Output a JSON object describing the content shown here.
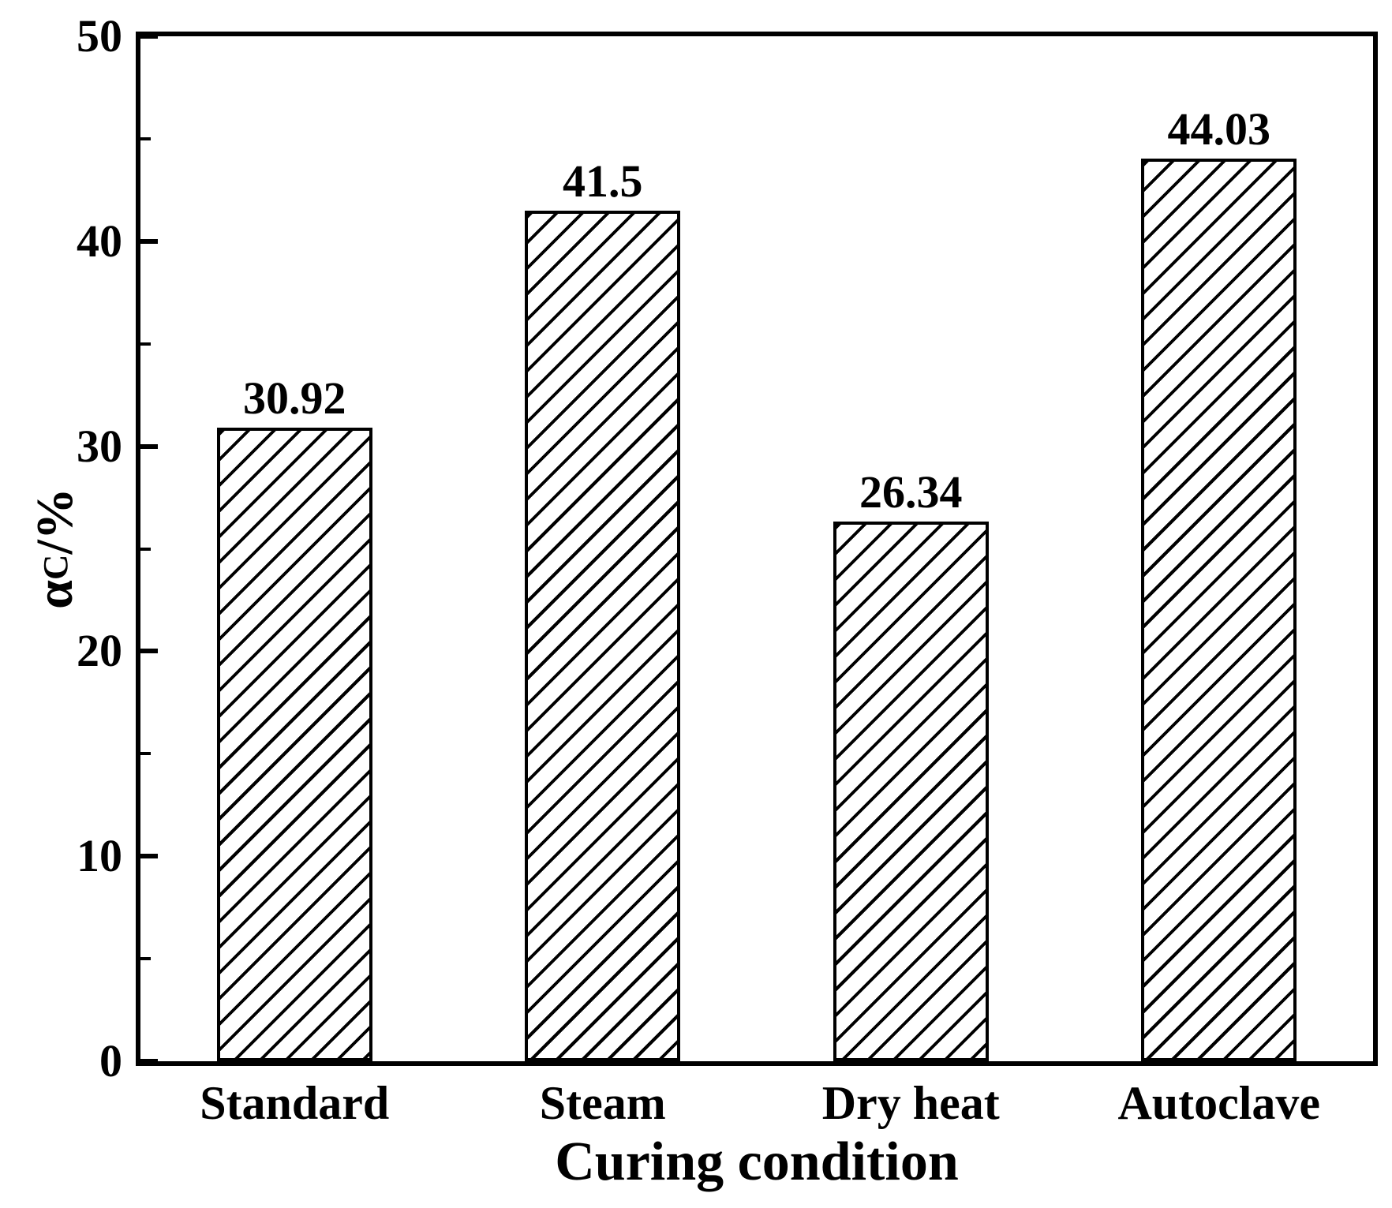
{
  "chart_data": {
    "type": "bar",
    "title": "",
    "categories": [
      "Standard",
      "Steam",
      "Dry heat",
      "Autoclave"
    ],
    "values": [
      30.92,
      41.5,
      26.34,
      44.03
    ],
    "value_labels": [
      "30.92",
      "41.5",
      "26.34",
      "44.03"
    ],
    "xlabel": "Curing condition",
    "ylabel": {
      "symbol": "α",
      "subscript": "C",
      "suffix": "/%"
    },
    "ylim": [
      0,
      50
    ],
    "yticks": [
      0,
      10,
      20,
      30,
      40,
      50
    ],
    "ytick_labels": [
      "0",
      "10",
      "20",
      "30",
      "40",
      "50"
    ],
    "yticks_minor": [
      5,
      15,
      25,
      35,
      45
    ],
    "grid": false,
    "legend": "none",
    "bar_style": {
      "fill": "#ffffff",
      "edge_color": "#000000",
      "hatch": "forward-diagonal"
    },
    "colors": {
      "foreground": "#000000",
      "background": "#ffffff"
    }
  }
}
